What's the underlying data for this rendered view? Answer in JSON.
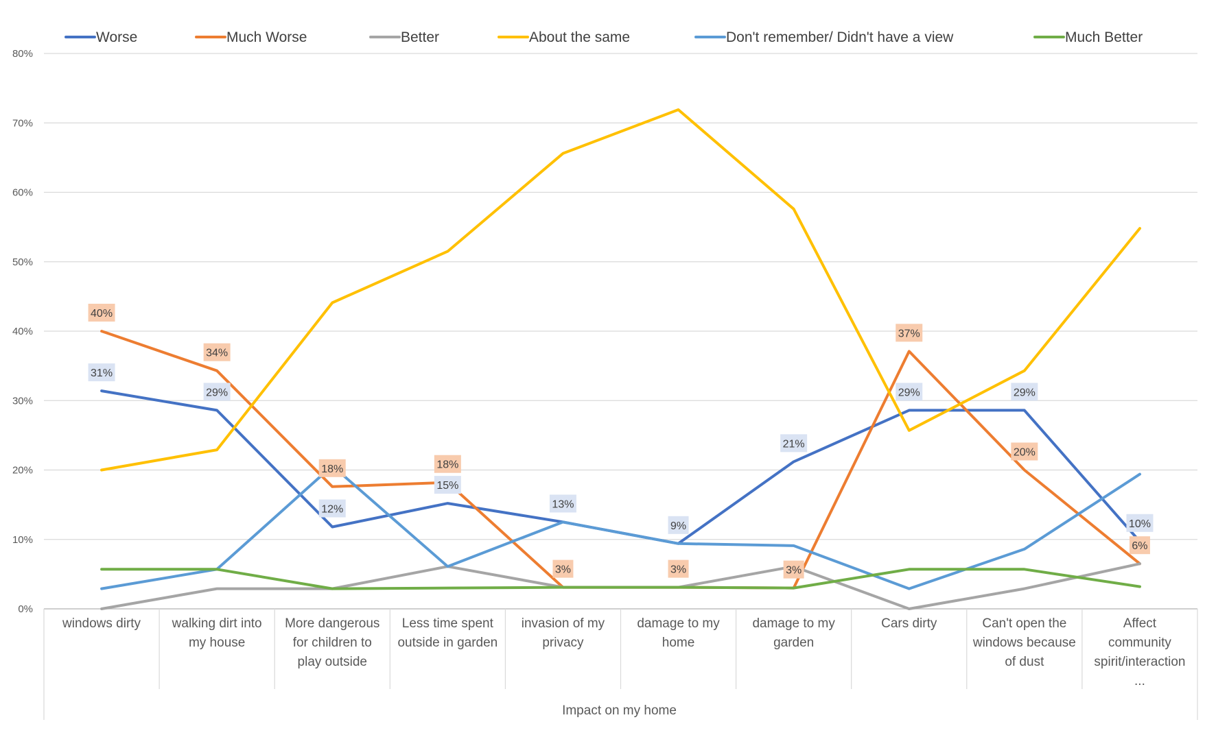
{
  "chart_data": {
    "type": "line",
    "title": "",
    "xlabel": "Impact on my home",
    "ylabel": "",
    "ylim": [
      0,
      0.8
    ],
    "yticks": [
      "0%",
      "10%",
      "20%",
      "30%",
      "40%",
      "50%",
      "60%",
      "70%",
      "80%"
    ],
    "grid": true,
    "legend_position": "top",
    "categories": [
      [
        "windows  dirty"
      ],
      [
        "walking dirt  into",
        "my house"
      ],
      [
        "More dangerous",
        "for children to",
        "play outside"
      ],
      [
        "Less time spent",
        "outside in garden"
      ],
      [
        "invasion of my",
        "privacy"
      ],
      [
        "damage to my",
        "home"
      ],
      [
        "damage to my",
        "garden"
      ],
      [
        "Cars dirty"
      ],
      [
        "Can't open the",
        "windows because",
        "of dust"
      ],
      [
        "Affect",
        "community",
        "spirit/interaction",
        "..."
      ]
    ],
    "series": [
      {
        "name": "Worse",
        "color": "#4472C4",
        "values": [
          0.314,
          0.286,
          0.118,
          0.152,
          0.125,
          0.094,
          0.212,
          0.286,
          0.286,
          0.097
        ],
        "labels": [
          "31%",
          "29%",
          "12%",
          "15%",
          "13%",
          "9%",
          "21%",
          "29%",
          "29%",
          "10%"
        ],
        "label_fill": "#DAE3F3"
      },
      {
        "name": "Much Worse",
        "color": "#ED7D31",
        "values": [
          0.4,
          0.343,
          0.176,
          0.182,
          0.031,
          0.031,
          0.03,
          0.371,
          0.2,
          0.065
        ],
        "labels": [
          "40%",
          "34%",
          "18%",
          "18%",
          "3%",
          "3%",
          "3%",
          "37%",
          "20%",
          "6%"
        ],
        "label_fill": "#F8CBAD"
      },
      {
        "name": "Better",
        "color": "#A5A5A5",
        "values": [
          0.0,
          0.029,
          0.029,
          0.061,
          0.031,
          0.031,
          0.061,
          0.0,
          0.029,
          0.065
        ]
      },
      {
        "name": "About the same",
        "color": "#FFC000",
        "values": [
          0.2,
          0.229,
          0.441,
          0.515,
          0.656,
          0.719,
          0.576,
          0.257,
          0.343,
          0.548
        ]
      },
      {
        "name": "Don't remember/ Didn't have a view",
        "color": "#5B9BD5",
        "values": [
          0.029,
          0.057,
          0.206,
          0.061,
          0.125,
          0.094,
          0.091,
          0.029,
          0.086,
          0.194
        ]
      },
      {
        "name": "Much Better",
        "color": "#70AD47",
        "values": [
          0.057,
          0.057,
          0.029,
          0.03,
          0.031,
          0.031,
          0.03,
          0.057,
          0.057,
          0.032
        ]
      }
    ]
  }
}
